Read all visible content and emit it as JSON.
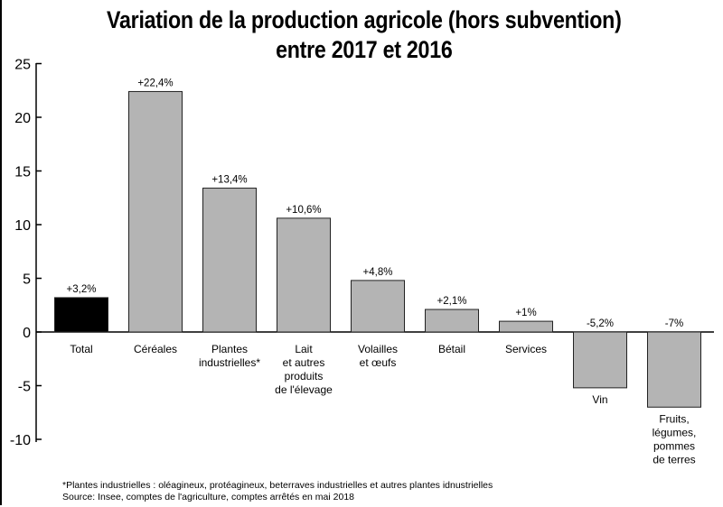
{
  "title_line1": "Variation de la production agricole (hors subvention)",
  "title_line2": "entre 2017 et 2016",
  "footnote": "*Plantes industrielles : oléagineux, protéagineux, beterraves industrielles et autres plantes idnustrielles",
  "source": "Source: Insee, comptes de l'agriculture, comptes arrêtés en mai 2018",
  "colors": {
    "highlight": "#000000",
    "bar": "#b4b4b4",
    "bar_stroke": "#222222"
  },
  "chart_data": {
    "type": "bar",
    "categories": [
      [
        "Total"
      ],
      [
        "Céréales"
      ],
      [
        "Plantes",
        "industrielles*"
      ],
      [
        "Lait",
        "et autres",
        "produits",
        "de l'élevage"
      ],
      [
        "Volailles",
        "et œufs"
      ],
      [
        "Bétail"
      ],
      [
        "Services"
      ],
      [
        "Vin"
      ],
      [
        "Fruits,",
        "légumes,",
        "pommes",
        "de terres"
      ]
    ],
    "values": [
      3.2,
      22.4,
      13.4,
      10.6,
      4.8,
      2.1,
      1.0,
      -5.2,
      -7.0
    ],
    "data_labels": [
      "+3,2%",
      "+22,4%",
      "+13,4%",
      "+10,6%",
      "+4,8%",
      "+2,1%",
      "+1%",
      "-5,2%",
      "-7%"
    ],
    "highlight_index": 0,
    "yticks": [
      25,
      20,
      15,
      10,
      5,
      0,
      -5,
      -10
    ],
    "ylim": [
      -10,
      25
    ],
    "xlabel": "",
    "ylabel": "",
    "grid": false
  }
}
